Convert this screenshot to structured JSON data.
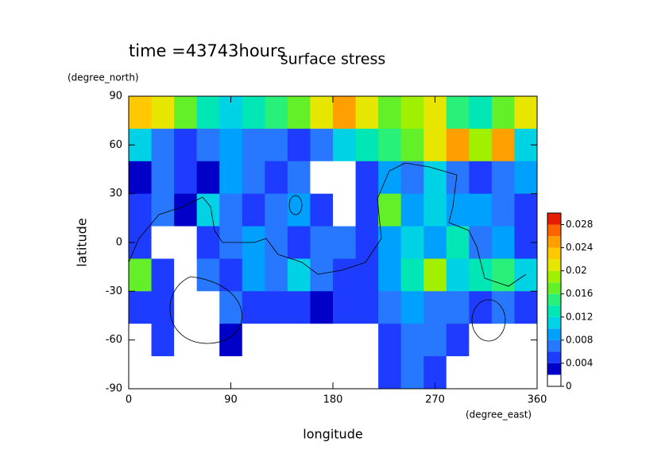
{
  "chart_data": {
    "type": "contour",
    "title": "surface stress",
    "subtitle": "time =43743hours",
    "x_label": "longitude",
    "x_units": "(degree_east)",
    "y_label": "latitude",
    "y_units": "(degree_north)",
    "xlim": [
      0,
      360
    ],
    "xticks": [
      0,
      90,
      180,
      270,
      360
    ],
    "ylim": [
      -90,
      90
    ],
    "yticks": [
      -90,
      -60,
      -30,
      0,
      30,
      60,
      90
    ],
    "x": [
      10,
      30,
      50,
      70,
      90,
      110,
      130,
      150,
      170,
      190,
      210,
      230,
      250,
      270,
      290,
      310,
      330,
      350
    ],
    "y": [
      80,
      60,
      40,
      20,
      0,
      -20,
      -40,
      -60,
      -80
    ],
    "z": [
      [
        0.022,
        0.02,
        0.016,
        0.012,
        0.01,
        0.012,
        0.014,
        0.016,
        0.02,
        0.024,
        0.02,
        0.016,
        0.018,
        0.02,
        0.014,
        0.012,
        0.016,
        0.02
      ],
      [
        0.01,
        0.006,
        0.004,
        0.006,
        0.008,
        0.006,
        0.006,
        0.004,
        0.006,
        0.01,
        0.012,
        0.014,
        0.016,
        0.02,
        0.024,
        0.018,
        0.024,
        0.01
      ],
      [
        0.002,
        0.006,
        0.004,
        0.003,
        0.008,
        0.006,
        0.004,
        0.006,
        0.001,
        0.001,
        0.004,
        0.008,
        0.006,
        0.01,
        0.006,
        0.004,
        0.006,
        0.008
      ],
      [
        0.004,
        0.006,
        0.003,
        0.01,
        0.006,
        0.004,
        0.006,
        0.008,
        0.004,
        0.001,
        0.004,
        0.016,
        0.008,
        0.01,
        0.008,
        0.008,
        0.006,
        0.004
      ],
      [
        0.004,
        0.001,
        0.001,
        0.004,
        0.006,
        0.008,
        0.006,
        0.004,
        0.006,
        0.006,
        0.004,
        0.008,
        0.01,
        0.008,
        0.012,
        0.006,
        0.008,
        0.004
      ],
      [
        0.016,
        0.004,
        0.001,
        0.006,
        0.004,
        0.008,
        0.006,
        0.01,
        0.006,
        0.004,
        0.004,
        0.008,
        0.012,
        0.018,
        0.01,
        0.012,
        0.014,
        0.01
      ],
      [
        0.004,
        0.004,
        0.001,
        0.001,
        0.006,
        0.004,
        0.004,
        0.004,
        0.002,
        0.004,
        0.004,
        0.006,
        0.008,
        0.006,
        0.006,
        0.004,
        0.006,
        0.004
      ],
      [
        0.001,
        0.004,
        0.001,
        0.001,
        0.003,
        0.001,
        0.001,
        0.001,
        0.001,
        0.001,
        0.001,
        0.004,
        0.006,
        0.006,
        0.004,
        0.001,
        0.001,
        0.001
      ],
      [
        0.001,
        0.001,
        0.001,
        0.001,
        0.001,
        0.001,
        0.001,
        0.001,
        0.001,
        0.001,
        0.001,
        0.004,
        0.006,
        0.004,
        0.001,
        0.001,
        0.001,
        0.001
      ]
    ],
    "levels": [
      0,
      0.002,
      0.004,
      0.006,
      0.008,
      0.01,
      0.012,
      0.014,
      0.016,
      0.018,
      0.02,
      0.022,
      0.024,
      0.026,
      0.028,
      0.03
    ],
    "colors": [
      "#ffffff",
      "#0000c8",
      "#1e3cff",
      "#2878ff",
      "#00a0ff",
      "#00d2e6",
      "#00e6b4",
      "#28f078",
      "#64f028",
      "#a0f000",
      "#e6e600",
      "#ffc800",
      "#ffa000",
      "#ff6400",
      "#e61e00"
    ],
    "clim": [
      0,
      0.03
    ],
    "cticks": [
      0,
      0.004,
      0.008,
      0.012,
      0.016,
      0.02,
      0.024,
      0.028
    ]
  }
}
